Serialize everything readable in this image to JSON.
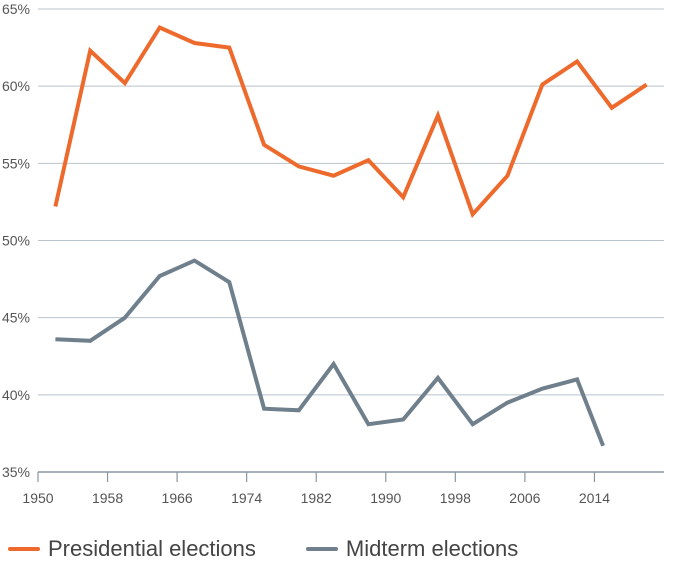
{
  "chart_data": {
    "type": "line",
    "title": "",
    "xlabel": "",
    "ylabel": "",
    "xlim": [
      1950,
      2022
    ],
    "ylim": [
      35,
      65
    ],
    "x_ticks": [
      1950,
      1958,
      1966,
      1974,
      1982,
      1990,
      1998,
      2006,
      2014
    ],
    "y_ticks": [
      35,
      40,
      45,
      50,
      55,
      60,
      65
    ],
    "y_tick_suffix": "%",
    "grid": "horizontal",
    "legend_position": "bottom-left",
    "series": [
      {
        "name": "Presidential elections",
        "color": "#ee6a2c",
        "points": [
          [
            1952,
            52.2
          ],
          [
            1956,
            62.3
          ],
          [
            1960,
            60.2
          ],
          [
            1964,
            63.8
          ],
          [
            1968,
            62.8
          ],
          [
            1972,
            62.5
          ],
          [
            1976,
            56.2
          ],
          [
            1980,
            54.8
          ],
          [
            1984,
            54.2
          ],
          [
            1988,
            55.2
          ],
          [
            1992,
            52.8
          ],
          [
            1996,
            58.1
          ],
          [
            2000,
            51.7
          ],
          [
            2004,
            54.2
          ],
          [
            2008,
            60.1
          ],
          [
            2012,
            61.6
          ],
          [
            2016,
            58.6
          ],
          [
            2020,
            60.1
          ]
        ]
      },
      {
        "name": "Midterm elections",
        "color": "#6f7f8c",
        "points": [
          [
            1952,
            43.6
          ],
          [
            1956,
            43.5
          ],
          [
            1960,
            45.0
          ],
          [
            1964,
            47.7
          ],
          [
            1968,
            48.7
          ],
          [
            1972,
            47.3
          ],
          [
            1976,
            39.1
          ],
          [
            1980,
            39.0
          ],
          [
            1984,
            42.0
          ],
          [
            1988,
            38.1
          ],
          [
            1992,
            38.4
          ],
          [
            1996,
            41.1
          ],
          [
            2000,
            38.1
          ],
          [
            2004,
            39.5
          ],
          [
            2008,
            40.4
          ],
          [
            2012,
            41.0
          ],
          [
            2015,
            36.7
          ]
        ]
      }
    ]
  },
  "style": {
    "grid_color": "#b9c3cc",
    "axis_color": "#8a96a0",
    "tick_label_color": "#555555"
  }
}
